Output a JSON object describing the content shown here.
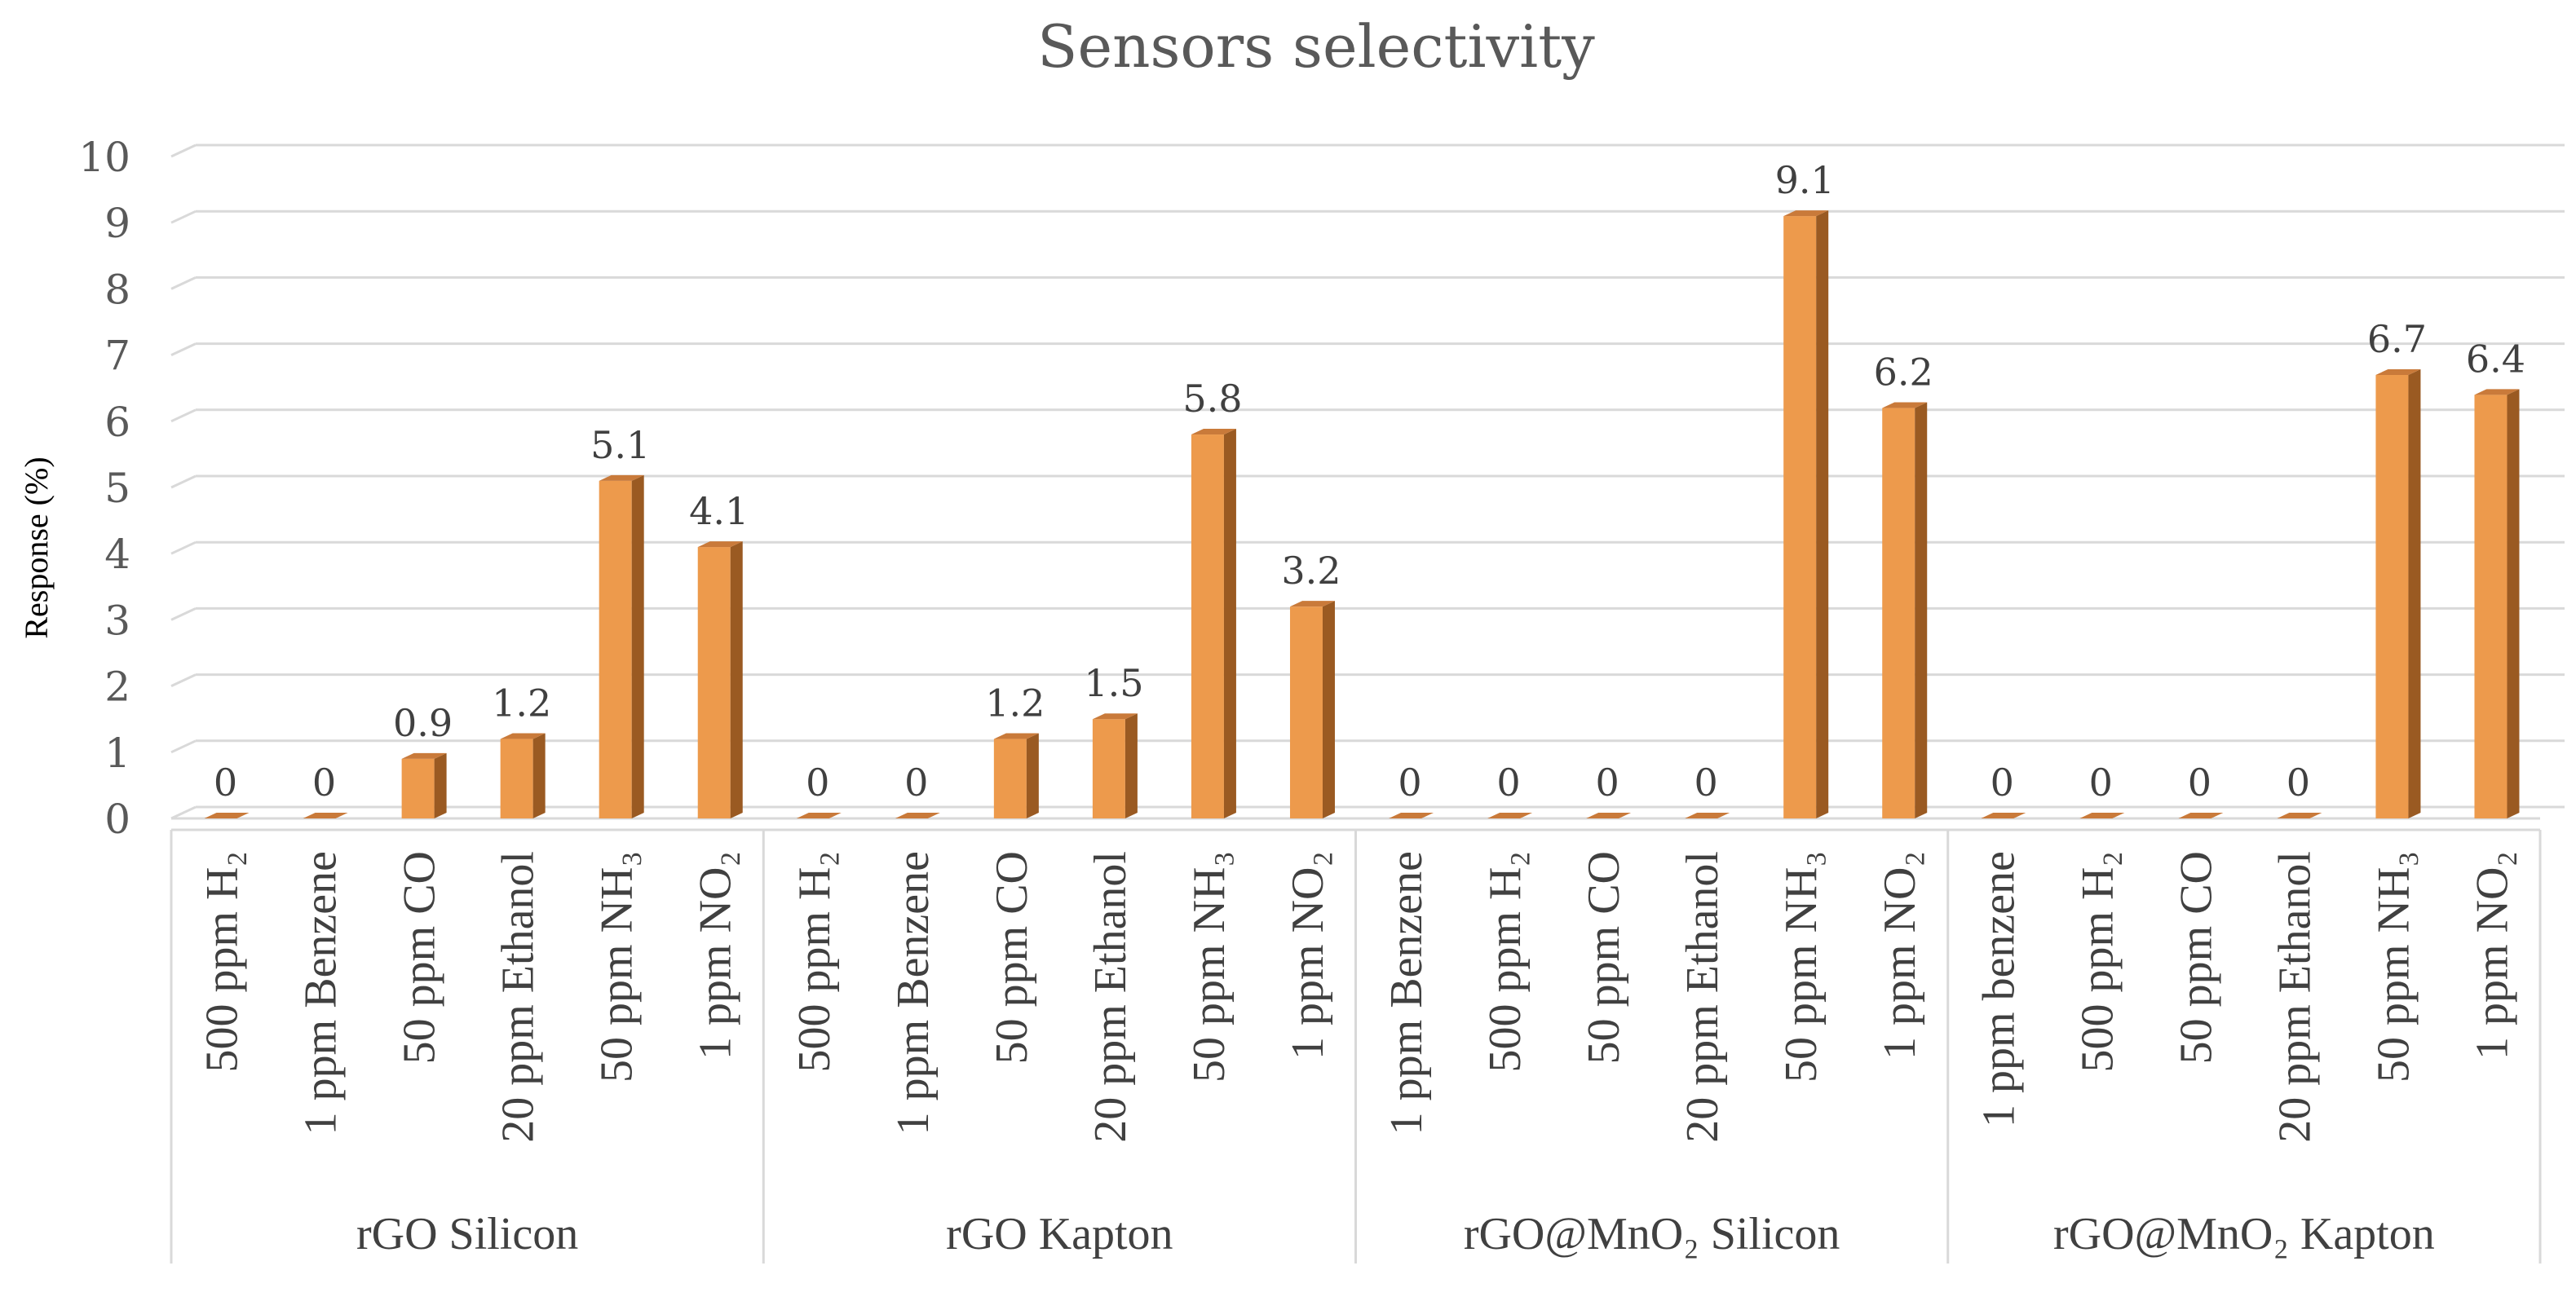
{
  "chart_data": {
    "type": "bar",
    "title": "Sensors selectivity",
    "ylabel": "Response (%)",
    "xlabel": "",
    "ylim": [
      0,
      10
    ],
    "yticks": [
      "0",
      "1",
      "2",
      "3",
      "4",
      "5",
      "6",
      "7",
      "8",
      "9",
      "10"
    ],
    "grid": true,
    "bar_color": "#ED9A4C",
    "groups": [
      {
        "name": "rGO Silicon",
        "categories": [
          "500 ppm H₂",
          "1 ppm Benzene",
          "50 ppm CO",
          "20 ppm Ethanol",
          "50 ppm NH₃",
          "1 ppm NO₂"
        ],
        "values": [
          0,
          0,
          0.9,
          1.2,
          5.1,
          4.1
        ],
        "labels": [
          "0",
          "0",
          "0.9",
          "1.2",
          "5.1",
          "4.1"
        ]
      },
      {
        "name": "rGO Kapton",
        "categories": [
          "500 ppm H₂",
          "1 ppm Benzene",
          "50 ppm CO",
          "20 ppm Ethanol",
          "50 ppm NH₃",
          "1 ppm NO₂"
        ],
        "values": [
          0,
          0,
          1.2,
          1.5,
          5.8,
          3.2
        ],
        "labels": [
          "0",
          "0",
          "1.2",
          "1.5",
          "5.8",
          "3.2"
        ]
      },
      {
        "name": "rGO@MnO₂ Silicon",
        "categories": [
          "1 ppm Benzene",
          "500 ppm H₂",
          "50 ppm CO",
          "20 ppm Ethanol",
          "50 ppm NH₃",
          "1 ppm NO₂"
        ],
        "values": [
          0,
          0,
          0,
          0,
          9.1,
          6.2
        ],
        "labels": [
          "0",
          "0",
          "0",
          "0",
          "9.1",
          "6.2"
        ]
      },
      {
        "name": "rGO@MnO₂ Kapton",
        "categories": [
          "1 ppm benzene",
          "500 ppm H₂",
          "50 ppm CO",
          "20 ppm Ethanol",
          "50 ppm NH₃",
          "1 ppm NO₂"
        ],
        "values": [
          0,
          0,
          0,
          0,
          6.7,
          6.4
        ],
        "labels": [
          "0",
          "0",
          "0",
          "0",
          "6.7",
          "6.4"
        ]
      }
    ]
  }
}
